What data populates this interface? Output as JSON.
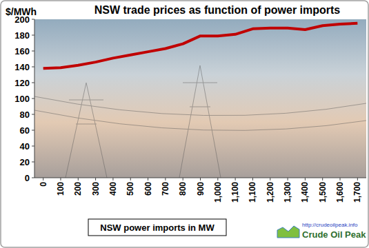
{
  "chart_data": {
    "type": "line",
    "title": "NSW trade prices as function of power imports",
    "y_label": "$/MWh",
    "x_label": "NSW power imports in MW",
    "annotations": [
      "http://crudeoilpeak.info",
      "Crude Oil Peak"
    ],
    "categories": [
      "0",
      "100",
      "200",
      "300",
      "400",
      "500",
      "600",
      "700",
      "800",
      "900",
      "1,000",
      "1,100",
      "1,100",
      "1,200",
      "1,300",
      "1,400",
      "1,500",
      "1,600",
      "1,700"
    ],
    "values": [
      138,
      139,
      142,
      146,
      151,
      155,
      159,
      163,
      169,
      179,
      179,
      181,
      188,
      189,
      189,
      187,
      192,
      194,
      195
    ],
    "color": "#c00000",
    "ylim": [
      0,
      200
    ],
    "yticks": [
      0,
      20,
      40,
      60,
      80,
      100,
      120,
      140,
      160,
      180,
      200
    ],
    "grid": false
  }
}
